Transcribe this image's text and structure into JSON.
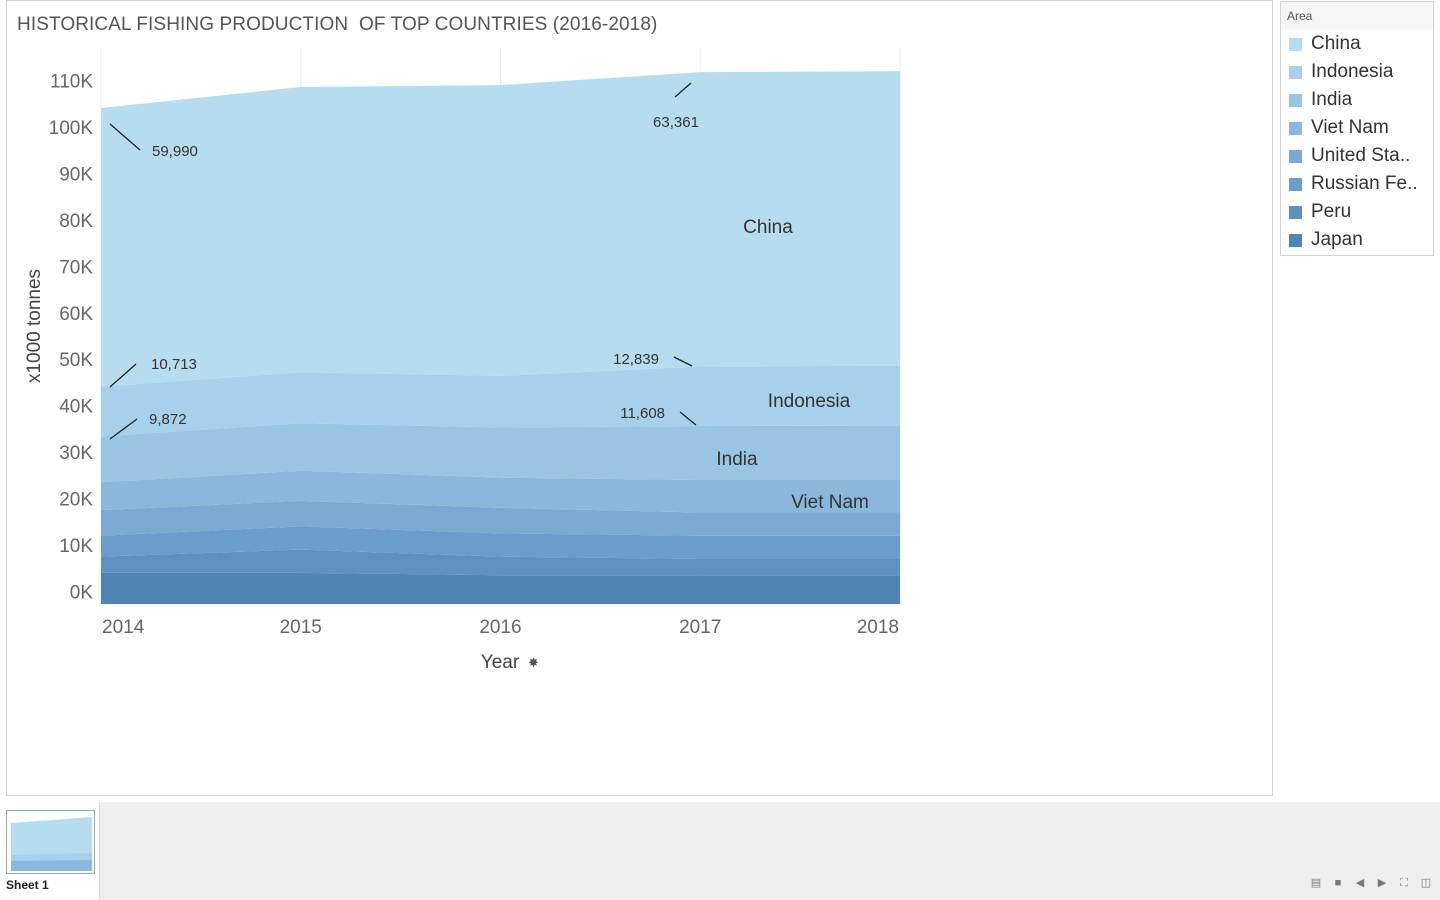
{
  "sheet": {
    "tab_label": "Sheet 1"
  },
  "legend": {
    "title": "Area",
    "items": [
      {
        "label": "China",
        "color": "#b8dcef"
      },
      {
        "label": "Indonesia",
        "color": "#a9d0ea"
      },
      {
        "label": "India",
        "color": "#99c4e2"
      },
      {
        "label": "Viet Nam",
        "color": "#8ab8dc"
      },
      {
        "label": "United Sta..",
        "color": "#7aaad2"
      },
      {
        "label": "Russian Fe..",
        "color": "#6b9dca"
      },
      {
        "label": "Peru",
        "color": "#5e91c0"
      },
      {
        "label": "Japan",
        "color": "#5084b2"
      }
    ]
  },
  "toolbar": {
    "icons": [
      "present-icon",
      "grid-icon",
      "prev-icon",
      "next-icon",
      "fullscreen-icon",
      "presentation-mode-icon"
    ]
  },
  "chart_data": {
    "type": "area",
    "stacked": true,
    "title": "HISTORICAL FISHING PRODUCTION  OF TOP COUNTRIES (2016-2018)",
    "xlabel": "Year",
    "ylabel": "x1000 tonnes",
    "x": [
      "2014",
      "2015",
      "2016",
      "2017",
      "2018"
    ],
    "y_ticks": [
      "0K",
      "10K",
      "20K",
      "30K",
      "40K",
      "50K",
      "60K",
      "70K",
      "80K",
      "90K",
      "100K",
      "110K"
    ],
    "ylim": [
      -2700,
      117000
    ],
    "grid": "vertical",
    "series": [
      {
        "name": "Japan",
        "values": [
          4000,
          4000,
          3500,
          3500,
          3500
        ]
      },
      {
        "name": "Peru",
        "values": [
          3500,
          5000,
          4000,
          3500,
          3500
        ]
      },
      {
        "name": "Russian Fe..",
        "values": [
          4500,
          5000,
          5000,
          5000,
          5000
        ]
      },
      {
        "name": "United Sta..",
        "values": [
          5500,
          5500,
          5500,
          5000,
          5000
        ]
      },
      {
        "name": "Viet Nam",
        "values": [
          6000,
          6500,
          6500,
          7000,
          7000
        ]
      },
      {
        "name": "India",
        "values": [
          9872,
          10200,
          10800,
          11608,
          11700
        ]
      },
      {
        "name": "Indonesia",
        "values": [
          10713,
          11000,
          11100,
          12839,
          12900
        ]
      },
      {
        "name": "China",
        "values": [
          59990,
          61400,
          62600,
          63361,
          63400
        ]
      }
    ],
    "annotations": [
      {
        "text": "59,990",
        "year": "2014",
        "series": "China"
      },
      {
        "text": "63,361",
        "year": "2017",
        "series": "China"
      },
      {
        "text": "10,713",
        "year": "2014",
        "series": "Indonesia"
      },
      {
        "text": "12,839",
        "year": "2017",
        "series": "Indonesia"
      },
      {
        "text": "9,872",
        "year": "2014",
        "series": "India"
      },
      {
        "text": "11,608",
        "year": "2017",
        "series": "India"
      }
    ],
    "area_labels": [
      {
        "text": "China",
        "series": "China"
      },
      {
        "text": "Indonesia",
        "series": "Indonesia"
      },
      {
        "text": "India",
        "series": "India"
      },
      {
        "text": "Viet Nam",
        "series": "Viet Nam"
      }
    ]
  }
}
